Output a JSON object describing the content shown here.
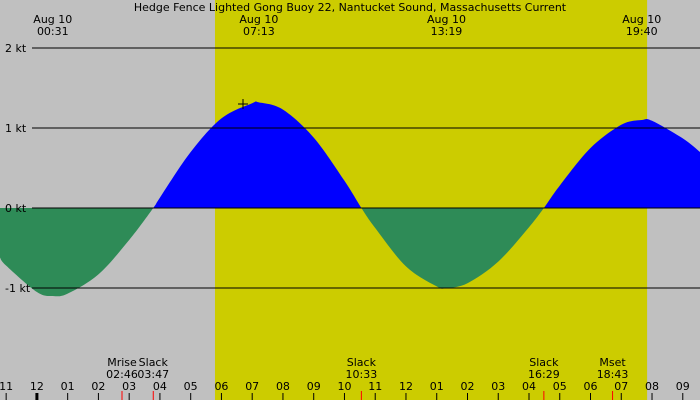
{
  "chart_data": {
    "type": "area",
    "title": "Hedge Fence Lighted Gong Buoy 22, Nantucket Sound, Massachusetts Current",
    "x": [
      -1.2,
      -1,
      0,
      0.517,
      1,
      2,
      3,
      3.783,
      4,
      5,
      6,
      7,
      7.217,
      8,
      9,
      10,
      10.55,
      11,
      12,
      13,
      13.317,
      14,
      15,
      16,
      16.483,
      17,
      18,
      19,
      19.667,
      20,
      21,
      21.56
    ],
    "values": [
      -0.62,
      -0.72,
      -1.05,
      -1.1,
      -1.07,
      -0.83,
      -0.4,
      0,
      0.13,
      0.7,
      1.12,
      1.31,
      1.32,
      1.23,
      0.88,
      0.34,
      0,
      -0.25,
      -0.73,
      -0.98,
      -1.0,
      -0.94,
      -0.67,
      -0.24,
      0,
      0.28,
      0.75,
      1.04,
      1.1,
      1.09,
      0.87,
      0.7
    ],
    "flood_color": "#0000ff",
    "ebb_color": "#2e8b57",
    "background_color": "#c0c0c0",
    "daylight_color": "#cccc00",
    "daylight": [
      5.79,
      19.84
    ],
    "xlim": [
      -1.2,
      21.56
    ],
    "xticks": [
      {
        "value": -1,
        "label": "11"
      },
      {
        "value": 0,
        "label": "12"
      },
      {
        "value": 1,
        "label": "01"
      },
      {
        "value": 2,
        "label": "02"
      },
      {
        "value": 3,
        "label": "03"
      },
      {
        "value": 4,
        "label": "04"
      },
      {
        "value": 5,
        "label": "05"
      },
      {
        "value": 6,
        "label": "06"
      },
      {
        "value": 7,
        "label": "07"
      },
      {
        "value": 8,
        "label": "08"
      },
      {
        "value": 9,
        "label": "09"
      },
      {
        "value": 10,
        "label": "10"
      },
      {
        "value": 11,
        "label": "11"
      },
      {
        "value": 12,
        "label": "12"
      },
      {
        "value": 13,
        "label": "01"
      },
      {
        "value": 14,
        "label": "02"
      },
      {
        "value": 15,
        "label": "03"
      },
      {
        "value": 16,
        "label": "04"
      },
      {
        "value": 17,
        "label": "05"
      },
      {
        "value": 18,
        "label": "06"
      },
      {
        "value": 19,
        "label": "07"
      },
      {
        "value": 20,
        "label": "08"
      },
      {
        "value": 21,
        "label": "09"
      }
    ],
    "ylim": [
      -2.4,
      2.6
    ],
    "yticks": [
      {
        "value": 2,
        "label": "2 kt"
      },
      {
        "value": 1,
        "label": "1 kt"
      },
      {
        "value": 0,
        "label": "0 kt"
      },
      {
        "value": -1,
        "label": "-1 kt"
      }
    ],
    "extremes": [
      {
        "date": "Aug 10",
        "time": "00:31"
      },
      {
        "date": "Aug 10",
        "time": "07:13"
      },
      {
        "date": "Aug 10",
        "time": "13:19"
      },
      {
        "date": "Aug 10",
        "time": "19:40"
      }
    ],
    "events": [
      {
        "label": "Mrise",
        "time": "02:46"
      },
      {
        "label": "Slack",
        "time": "03:47"
      },
      {
        "label": "Slack",
        "time": "10:33"
      },
      {
        "label": "Slack",
        "time": "16:29"
      },
      {
        "label": "Mset",
        "time": "18:43"
      }
    ]
  }
}
